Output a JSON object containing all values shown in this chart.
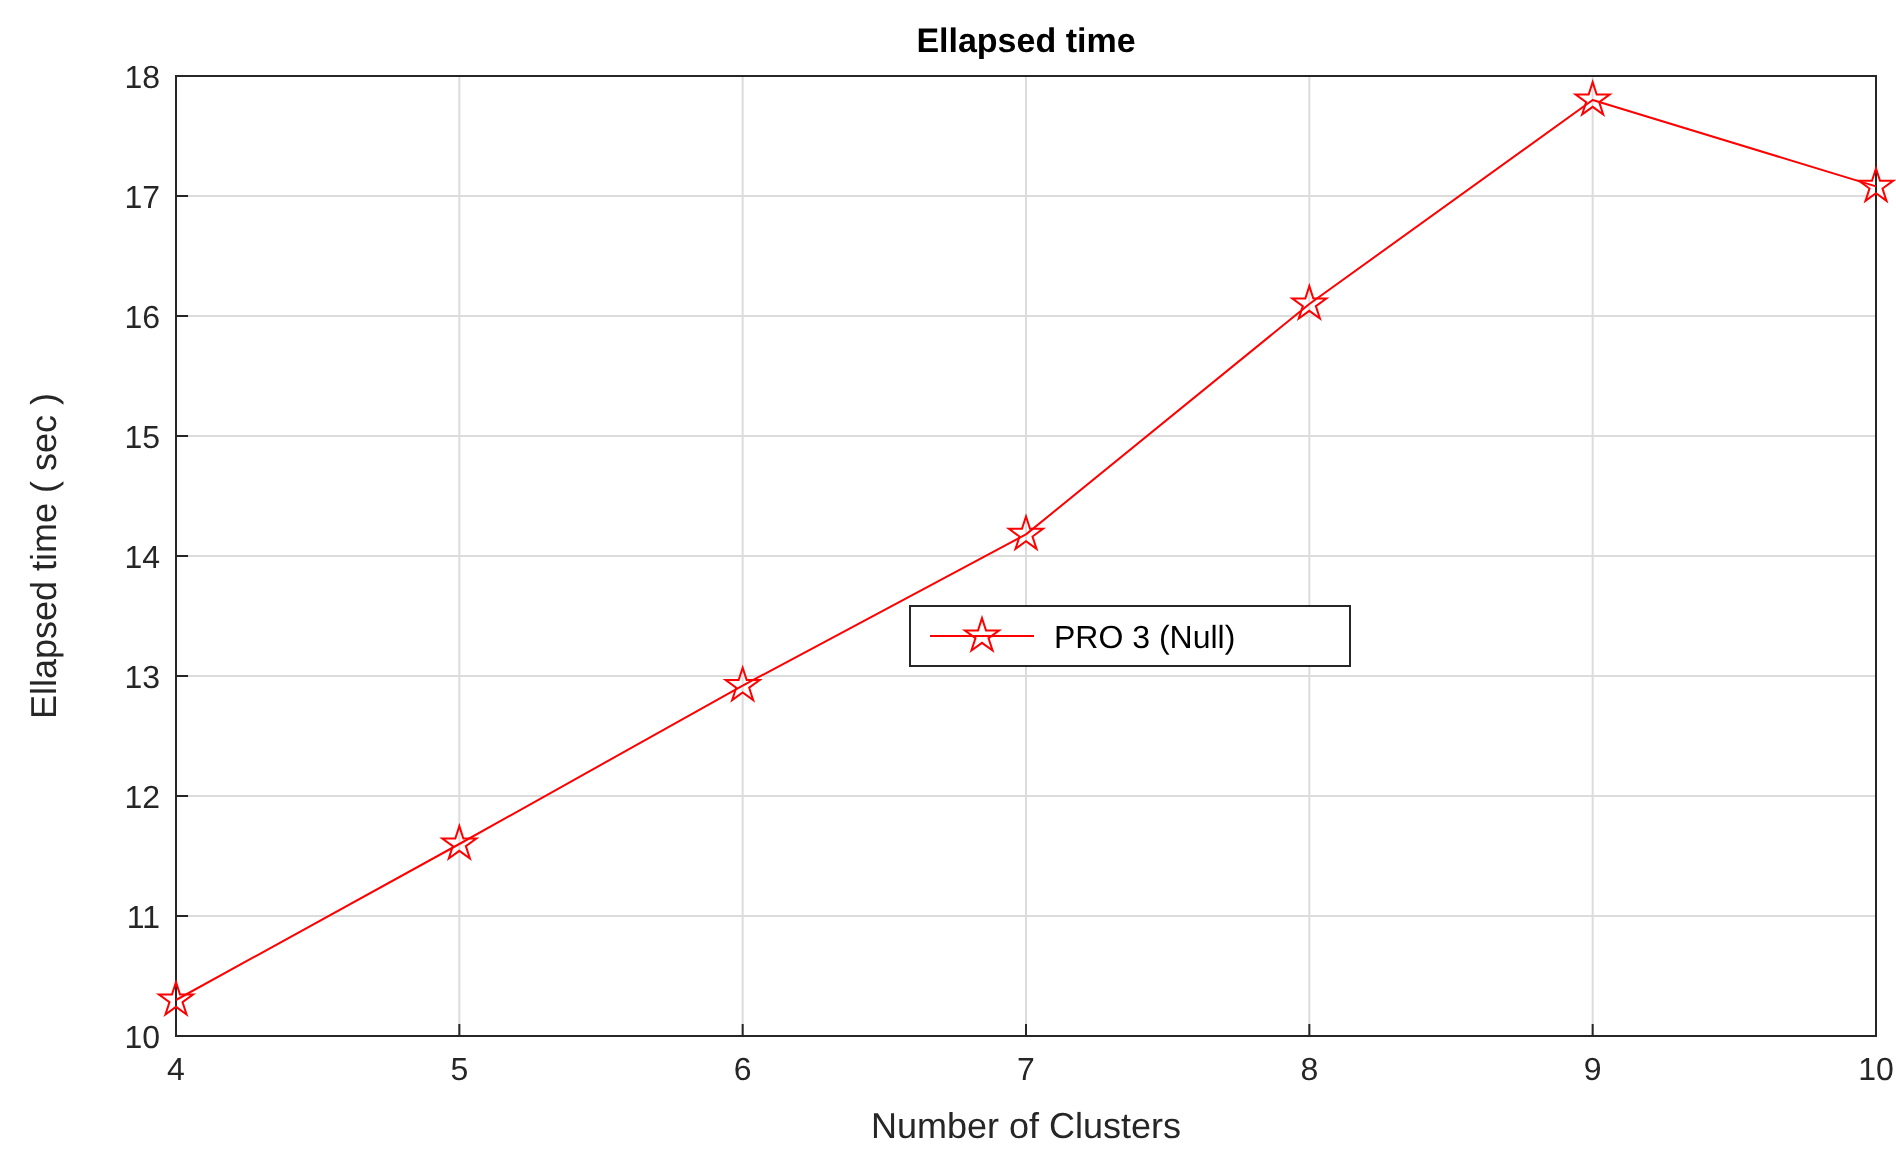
{
  "chart_data": {
    "type": "line",
    "title": "Ellapsed time",
    "xlabel": "Number of Clusters",
    "ylabel": "Ellapsed time ( sec )",
    "x": [
      4,
      5,
      6,
      7,
      8,
      9,
      10
    ],
    "series": [
      {
        "name": "PRO 3 (Null)",
        "color": "#ff0000",
        "values": [
          10.3,
          11.6,
          12.92,
          14.18,
          16.1,
          17.8,
          17.08
        ]
      }
    ],
    "xlim": [
      4,
      10
    ],
    "xticks": [
      4,
      5,
      6,
      7,
      8,
      9,
      10
    ],
    "ylim": [
      10,
      18
    ],
    "yticks": [
      10,
      11,
      12,
      13,
      14,
      15,
      16,
      17,
      18
    ],
    "grid": true,
    "legend": "center",
    "marker": "star",
    "line_style": "solid"
  }
}
